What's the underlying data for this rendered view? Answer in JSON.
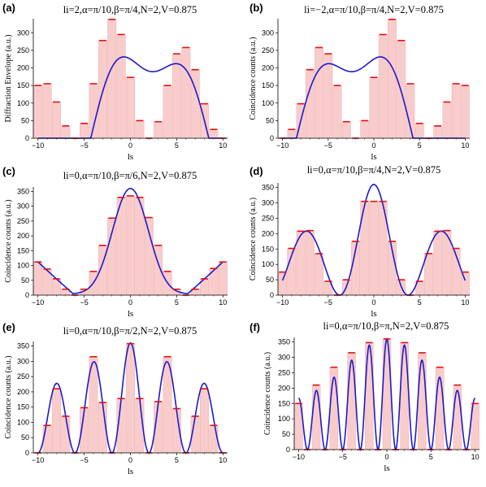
{
  "chart_data": [
    {
      "panel_label": "(a)",
      "type": "bar",
      "title": "li=2,α=π/10,β=π/4,N=2,V=0.875",
      "xlabel": "ls",
      "ylabel": "Diffraction Envelope (a.u.)",
      "xlim": [
        -10.5,
        10.5
      ],
      "ylim": [
        0,
        340
      ],
      "xticks": [
        -10,
        -5,
        0,
        5,
        10
      ],
      "yticks": [
        0,
        50,
        100,
        150,
        200,
        250,
        300
      ],
      "x": [
        -10,
        -9,
        -8,
        -7,
        -6,
        -5,
        -4,
        -3,
        -2,
        -1,
        0,
        1,
        2,
        3,
        4,
        5,
        6,
        7,
        8,
        9,
        10
      ],
      "values": [
        150,
        155,
        103,
        35,
        0,
        42,
        155,
        278,
        338,
        295,
        173,
        50,
        0,
        47,
        150,
        240,
        258,
        195,
        98,
        25,
        0
      ],
      "series": [
        {
          "name": "",
          "type": "bar"
        },
        {
          "name": "",
          "type": "line",
          "color": "#0000cc"
        }
      ],
      "curve": "a"
    },
    {
      "panel_label": "(b)",
      "type": "bar",
      "title": "li=−2,α=π/10,β=π/4,N=2,V=0.875",
      "xlabel": "ls",
      "ylabel": "Coincidence counts (a.u.)",
      "xlim": [
        -10.5,
        10.5
      ],
      "ylim": [
        0,
        340
      ],
      "xticks": [
        -10,
        -5,
        0,
        5,
        10
      ],
      "yticks": [
        0,
        50,
        100,
        150,
        200,
        250,
        300
      ],
      "x": [
        -10,
        -9,
        -8,
        -7,
        -6,
        -5,
        -4,
        -3,
        -2,
        -1,
        0,
        1,
        2,
        3,
        4,
        5,
        6,
        7,
        8,
        9,
        10
      ],
      "values": [
        0,
        25,
        98,
        195,
        258,
        240,
        150,
        47,
        0,
        50,
        173,
        295,
        338,
        278,
        155,
        42,
        0,
        35,
        103,
        155,
        150
      ],
      "curve": "b"
    },
    {
      "panel_label": "(c)",
      "type": "bar",
      "title": "li=0,α=π/10,β=π/6,N=2,V=0.875",
      "xlabel": "ls",
      "ylabel": "Coincidence counts (a.u.)",
      "xlim": [
        -10.5,
        10.5
      ],
      "ylim": [
        0,
        365
      ],
      "xticks": [
        -10,
        -5,
        0,
        5,
        10
      ],
      "yticks": [
        0,
        50,
        100,
        150,
        200,
        250,
        300,
        350
      ],
      "x": [
        -10,
        -9,
        -8,
        -7,
        -6,
        -5,
        -4,
        -3,
        -2,
        -1,
        0,
        1,
        2,
        3,
        4,
        5,
        6,
        7,
        8,
        9,
        10
      ],
      "values": [
        112,
        88,
        55,
        20,
        0,
        20,
        80,
        168,
        260,
        330,
        335,
        330,
        262,
        168,
        80,
        20,
        0,
        20,
        55,
        90,
        112
      ],
      "curve": "c"
    },
    {
      "panel_label": "(d)",
      "type": "bar",
      "title": "li=0,α=π/10,β=π/4,N=2,V=0.875",
      "xlabel": "ls",
      "ylabel": "Coincidence counts (a.u.)",
      "xlim": [
        -10.5,
        10.5
      ],
      "ylim": [
        0,
        365
      ],
      "xticks": [
        -10,
        -5,
        0,
        5,
        10
      ],
      "yticks": [
        0,
        50,
        100,
        150,
        200,
        250,
        300,
        350
      ],
      "x": [
        -10,
        -9,
        -8,
        -7,
        -6,
        -5,
        -4,
        -3,
        -2,
        -1,
        0,
        1,
        2,
        3,
        4,
        5,
        6,
        7,
        8,
        9,
        10
      ],
      "values": [
        75,
        152,
        208,
        210,
        135,
        45,
        0,
        50,
        175,
        305,
        305,
        305,
        175,
        50,
        0,
        45,
        135,
        208,
        210,
        152,
        75
      ],
      "curve": "d"
    },
    {
      "panel_label": "(e)",
      "type": "bar",
      "title": "li=0,α=π/10,β=π/2,N=2,V=0.875",
      "xlabel": "ls",
      "ylabel": "Coincidence counts (a.u.)",
      "xlim": [
        -10.5,
        10.5
      ],
      "ylim": [
        0,
        365
      ],
      "xticks": [
        -10,
        -5,
        0,
        5,
        10
      ],
      "yticks": [
        0,
        50,
        100,
        150,
        200,
        250,
        300,
        350
      ],
      "x": [
        -10,
        -9,
        -8,
        -7,
        -6,
        -5,
        -4,
        -3,
        -2,
        -1,
        0,
        1,
        2,
        3,
        4,
        5,
        6,
        7,
        8,
        9,
        10
      ],
      "values": [
        0,
        90,
        210,
        120,
        0,
        148,
        315,
        165,
        0,
        178,
        358,
        178,
        0,
        168,
        315,
        145,
        0,
        120,
        210,
        90,
        0
      ],
      "curve": "e"
    },
    {
      "panel_label": "(f)",
      "type": "bar",
      "title": "li=0,α=π/10,β=π,N=2,V=0.875",
      "xlabel": "ls",
      "ylabel": "Coincidence counts (a.u.)",
      "xlim": [
        -10.5,
        10.5
      ],
      "ylim": [
        0,
        365
      ],
      "xticks": [
        -10,
        -5,
        0,
        5,
        10
      ],
      "yticks": [
        0,
        50,
        100,
        150,
        200,
        250,
        300,
        350
      ],
      "x": [
        -10,
        -9,
        -8,
        -7,
        -6,
        -5,
        -4,
        -3,
        -2,
        -1,
        0,
        1,
        2,
        3,
        4,
        5,
        6,
        7,
        8,
        9,
        10
      ],
      "values": [
        150,
        0,
        210,
        0,
        268,
        0,
        315,
        0,
        348,
        0,
        360,
        0,
        348,
        0,
        315,
        0,
        268,
        0,
        210,
        0,
        150
      ],
      "curve": "f"
    }
  ],
  "colors": {
    "bar_fill": "#f9cccc",
    "bar_edge": "#f2b6b6",
    "marker": "#e01010",
    "curve": "#1a1acc",
    "axis": "#000000"
  }
}
